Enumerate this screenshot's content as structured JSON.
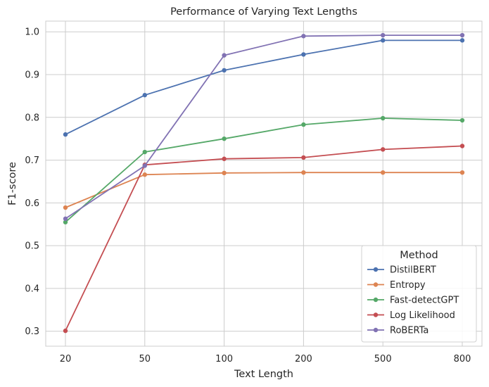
{
  "chart_data": {
    "type": "line",
    "title": "Performance of Varying Text Lengths",
    "xlabel": "Text Length",
    "ylabel": "F1-score",
    "categories": [
      "20",
      "50",
      "100",
      "200",
      "500",
      "800"
    ],
    "ylim": [
      0.265,
      1.025
    ],
    "yticks": [
      0.3,
      0.4,
      0.5,
      0.6,
      0.7,
      0.8,
      0.9,
      1.0
    ],
    "ytick_labels": [
      "0.3",
      "0.4",
      "0.5",
      "0.6",
      "0.7",
      "0.8",
      "0.9",
      "1.0"
    ],
    "grid": true,
    "legend": {
      "title": "Method",
      "placement": "lower-right"
    },
    "series": [
      {
        "name": "DistilBERT",
        "color": "#4c72b0",
        "values": [
          0.76,
          0.852,
          0.91,
          0.947,
          0.98,
          0.98
        ]
      },
      {
        "name": "Entropy",
        "color": "#dd8452",
        "values": [
          0.589,
          0.666,
          0.67,
          0.671,
          0.671,
          0.671
        ]
      },
      {
        "name": "Fast-detectGPT",
        "color": "#55a868",
        "values": [
          0.555,
          0.719,
          0.75,
          0.783,
          0.798,
          0.793
        ]
      },
      {
        "name": "Log Likelihood",
        "color": "#c44e52",
        "values": [
          0.301,
          0.689,
          0.703,
          0.706,
          0.725,
          0.733
        ]
      },
      {
        "name": "RoBERTa",
        "color": "#8172b3",
        "values": [
          0.563,
          0.687,
          0.945,
          0.99,
          0.992,
          0.992
        ]
      }
    ]
  }
}
